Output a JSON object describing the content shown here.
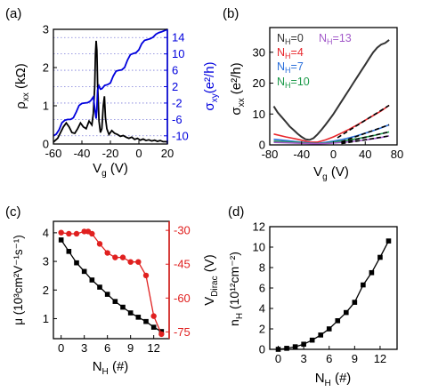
{
  "figure": {
    "panels": [
      {
        "id": "a",
        "label": "(a)",
        "xlabel": "V",
        "xlabel_sub": "g",
        "xunit": " (V)",
        "ylabel_left": {
          "main": "ρ",
          "sub": "xx",
          "unit": " (kΩ)"
        },
        "ylabel_right": {
          "main": "σ",
          "sub": "xy",
          "unit": "(e²/h)"
        }
      },
      {
        "id": "b",
        "label": "(b)",
        "xlabel": "V",
        "xlabel_sub": "g",
        "xunit": " (V)",
        "ylabel_left": {
          "main": "σ",
          "sub": "xx",
          "unit": " (e²/h)"
        }
      },
      {
        "id": "c",
        "label": "(c)",
        "xlabel": "N",
        "xlabel_sub": "H",
        "xunit": " (#)",
        "ylabel_left": {
          "main": "μ",
          "sub": "",
          "unit": " (10³cm²V⁻¹s⁻¹)"
        },
        "ylabel_right": {
          "main": "V",
          "sub": "Dirac",
          "unit": " (V)"
        }
      },
      {
        "id": "d",
        "label": "(d)",
        "xlabel": "N",
        "xlabel_sub": "H",
        "xunit": " (#)",
        "ylabel_left": {
          "main": "n",
          "sub": "H",
          "unit": " (10¹²cm⁻²)"
        }
      }
    ],
    "colors": {
      "black": "#000000",
      "blue": "#0000dd",
      "red": "#e0201f",
      "gray": "#555555",
      "nh0": "#333333",
      "nh4": "#e8262b",
      "nh7": "#2a6fdb",
      "nh10": "#1c9a4a",
      "nh13": "#a259c9",
      "grid_blue": "#7a7ad8"
    }
  },
  "chart_data": [
    {
      "panel": "a",
      "type": "line",
      "xlim": [
        -60,
        20
      ],
      "xticks": [
        -60,
        -40,
        -20,
        0,
        20
      ],
      "ylim_left": [
        0,
        3
      ],
      "yticks_left": [
        0,
        1,
        2,
        3
      ],
      "ylim_right": [
        -12,
        16
      ],
      "yticks_right": [
        -10,
        -6,
        -2,
        2,
        6,
        10,
        14
      ],
      "right_grid": "dotted lines at right-axis ticks",
      "series": [
        {
          "color": "black",
          "axis": "left",
          "x": [
            -60,
            -57,
            -55,
            -53,
            -51,
            -49,
            -47,
            -45,
            -43,
            -41,
            -39,
            -37,
            -35,
            -33,
            -32,
            -31,
            -30.5,
            -30,
            -29.5,
            -29,
            -28,
            -27,
            -26,
            -25,
            -24.2,
            -23.5,
            -22.5,
            -21,
            -19,
            -17,
            -15,
            -13,
            -11,
            -9,
            -7,
            -5,
            -3,
            -1,
            1,
            3,
            5,
            7,
            9,
            11,
            13,
            15,
            17,
            19,
            20
          ],
          "y": [
            0.05,
            0.15,
            0.3,
            0.45,
            0.55,
            0.45,
            0.3,
            0.28,
            0.4,
            0.55,
            0.45,
            0.4,
            0.6,
            0.5,
            0.8,
            1.5,
            2.35,
            2.7,
            2.45,
            1.6,
            0.6,
            0.3,
            0.4,
            1.0,
            1.25,
            0.7,
            0.4,
            0.25,
            0.35,
            0.28,
            0.25,
            0.2,
            0.22,
            0.18,
            0.15,
            0.18,
            0.12,
            0.15,
            0.1,
            0.13,
            0.09,
            0.11,
            0.08,
            0.1,
            0.07,
            0.09,
            0.06,
            0.06,
            0.05
          ]
        },
        {
          "color": "blue",
          "axis": "right",
          "x": [
            -60,
            -58,
            -56,
            -54,
            -52,
            -50,
            -48,
            -46,
            -44,
            -42,
            -40,
            -38,
            -36,
            -34,
            -32,
            -30.5,
            -30,
            -29.5,
            -29,
            -28,
            -27,
            -26,
            -25,
            -24,
            -22,
            -20,
            -18,
            -16,
            -14,
            -12,
            -10,
            -8,
            -6,
            -4,
            -2,
            0,
            2,
            4,
            6,
            8,
            10,
            12,
            14,
            16,
            18,
            20
          ],
          "y": [
            -10,
            -9.6,
            -8.5,
            -6.8,
            -6.2,
            -6.0,
            -6.0,
            -5.6,
            -4.2,
            -2.6,
            -2.1,
            -2.0,
            -1.9,
            -1.5,
            -0.5,
            -4.5,
            -5.8,
            -3.5,
            1.2,
            2.2,
            1.4,
            1.5,
            1.9,
            2.3,
            2.5,
            2.9,
            4.6,
            5.8,
            6.0,
            6.1,
            6.7,
            8.5,
            9.8,
            10.1,
            10.3,
            11.0,
            12.5,
            13.3,
            13.5,
            13.7,
            14.1,
            14.8,
            15.2,
            15.4,
            15.7,
            16.0
          ]
        }
      ]
    },
    {
      "panel": "b",
      "type": "line",
      "xlim": [
        -80,
        80
      ],
      "xticks": [
        -80,
        -40,
        0,
        40,
        80
      ],
      "ylim": [
        0,
        38
      ],
      "yticks": [
        0,
        10,
        20,
        30
      ],
      "legend": [
        "N_H=0",
        "N_H=4",
        "N_H=7",
        "N_H=10",
        "N_H=13"
      ],
      "legend_placement": "top",
      "series": [
        {
          "name": "N_H=0",
          "color": "nh0",
          "x": [
            -75,
            -70,
            -65,
            -60,
            -55,
            -50,
            -45,
            -40,
            -35,
            -30,
            -25,
            -20,
            -15,
            -10,
            -5,
            0,
            5,
            10,
            15,
            20,
            25,
            30,
            35,
            40,
            45,
            50,
            55,
            60,
            65,
            70
          ],
          "y": [
            12.5,
            10.5,
            9,
            7.5,
            6,
            4.8,
            3.6,
            2.6,
            1.8,
            1.6,
            2.2,
            3.4,
            4.9,
            6.5,
            8.2,
            10,
            12,
            14,
            16,
            18,
            20,
            22,
            24,
            26,
            28,
            30,
            31.5,
            32.5,
            33,
            34
          ]
        },
        {
          "name": "N_H=4",
          "color": "nh4",
          "x": [
            -75,
            -60,
            -45,
            -30,
            -20,
            -10,
            0,
            10,
            20,
            30,
            40,
            50,
            60,
            70
          ],
          "y": [
            3.5,
            2.6,
            1.8,
            0.9,
            0.9,
            1.6,
            2.6,
            3.8,
            5.1,
            6.5,
            8.0,
            9.5,
            11,
            12.8
          ]
        },
        {
          "name": "N_H=7",
          "color": "nh7",
          "x": [
            -75,
            -60,
            -45,
            -30,
            -20,
            -10,
            0,
            10,
            20,
            30,
            40,
            50,
            60,
            70
          ],
          "y": [
            1.8,
            1.4,
            1.0,
            0.6,
            0.5,
            0.8,
            1.2,
            1.7,
            2.3,
            3.0,
            3.8,
            4.6,
            5.5,
            6.5
          ]
        },
        {
          "name": "N_H=10",
          "color": "nh10",
          "x": [
            -75,
            -60,
            -45,
            -30,
            -20,
            -10,
            0,
            10,
            20,
            30,
            40,
            50,
            60,
            70
          ],
          "y": [
            1.2,
            1.0,
            0.8,
            0.5,
            0.4,
            0.6,
            0.9,
            1.2,
            1.6,
            2.0,
            2.5,
            3.0,
            3.6,
            4.2
          ]
        },
        {
          "name": "N_H=13",
          "color": "nh13",
          "x": [
            -75,
            -60,
            -45,
            -30,
            -20,
            -10,
            0,
            10,
            20,
            30,
            40,
            50,
            60,
            70
          ],
          "y": [
            0.8,
            0.7,
            0.55,
            0.4,
            0.35,
            0.45,
            0.6,
            0.8,
            1.0,
            1.3,
            1.6,
            2.0,
            2.4,
            2.9
          ]
        }
      ],
      "fits": [
        {
          "color": "black",
          "style": "dashed",
          "x": [
            5,
            70
          ],
          "y": [
            2.3,
            12.8
          ]
        },
        {
          "color": "black",
          "style": "dashed",
          "x": [
            10,
            70
          ],
          "y": [
            1.0,
            6.5
          ]
        },
        {
          "color": "black",
          "style": "dashed",
          "x": [
            10,
            70
          ],
          "y": [
            0.7,
            4.2
          ]
        },
        {
          "color": "black",
          "style": "dashed",
          "x": [
            10,
            70
          ],
          "y": [
            0.4,
            2.9
          ]
        }
      ]
    },
    {
      "panel": "c",
      "type": "scatter",
      "xlim": [
        -1,
        14
      ],
      "xticks": [
        0,
        3,
        6,
        9,
        12
      ],
      "ylim_left": [
        0.3,
        4.4
      ],
      "yticks_left": [
        1,
        2,
        3,
        4
      ],
      "ylim_right": [
        -78,
        -26
      ],
      "yticks_right": [
        -30,
        -45,
        -60,
        -75
      ],
      "series": [
        {
          "color": "black",
          "axis": "left",
          "marker": "square",
          "x": [
            0,
            1,
            2,
            3,
            4,
            5,
            6,
            7,
            8,
            9,
            10,
            11,
            12,
            13
          ],
          "y": [
            3.75,
            3.35,
            2.95,
            2.65,
            2.35,
            2.1,
            1.85,
            1.6,
            1.4,
            1.2,
            1.05,
            0.9,
            0.7,
            0.55
          ]
        },
        {
          "color": "red",
          "axis": "right",
          "marker": "circle",
          "x": [
            0,
            1,
            2,
            3,
            3.5,
            4,
            5,
            6,
            7,
            8,
            9,
            10,
            11,
            12,
            13
          ],
          "y": [
            -31,
            -31.5,
            -31.5,
            -30.5,
            -30.5,
            -31.5,
            -36,
            -40,
            -42,
            -42,
            -44,
            -44,
            -50,
            -68,
            -76
          ]
        }
      ]
    },
    {
      "panel": "d",
      "type": "scatter",
      "xlim": [
        -1,
        14
      ],
      "xticks": [
        0,
        3,
        6,
        9,
        12
      ],
      "ylim": [
        0,
        12
      ],
      "yticks": [
        0,
        2,
        4,
        6,
        8,
        10,
        12
      ],
      "series": [
        {
          "color": "black",
          "marker": "square",
          "x": [
            0,
            1,
            2,
            3,
            4,
            5,
            6,
            7,
            8,
            9,
            10,
            11,
            12,
            13
          ],
          "y": [
            0.0,
            0.1,
            0.25,
            0.5,
            0.9,
            1.4,
            2.0,
            2.8,
            3.6,
            4.6,
            6.3,
            7.5,
            9.0,
            10.6
          ]
        }
      ]
    }
  ]
}
